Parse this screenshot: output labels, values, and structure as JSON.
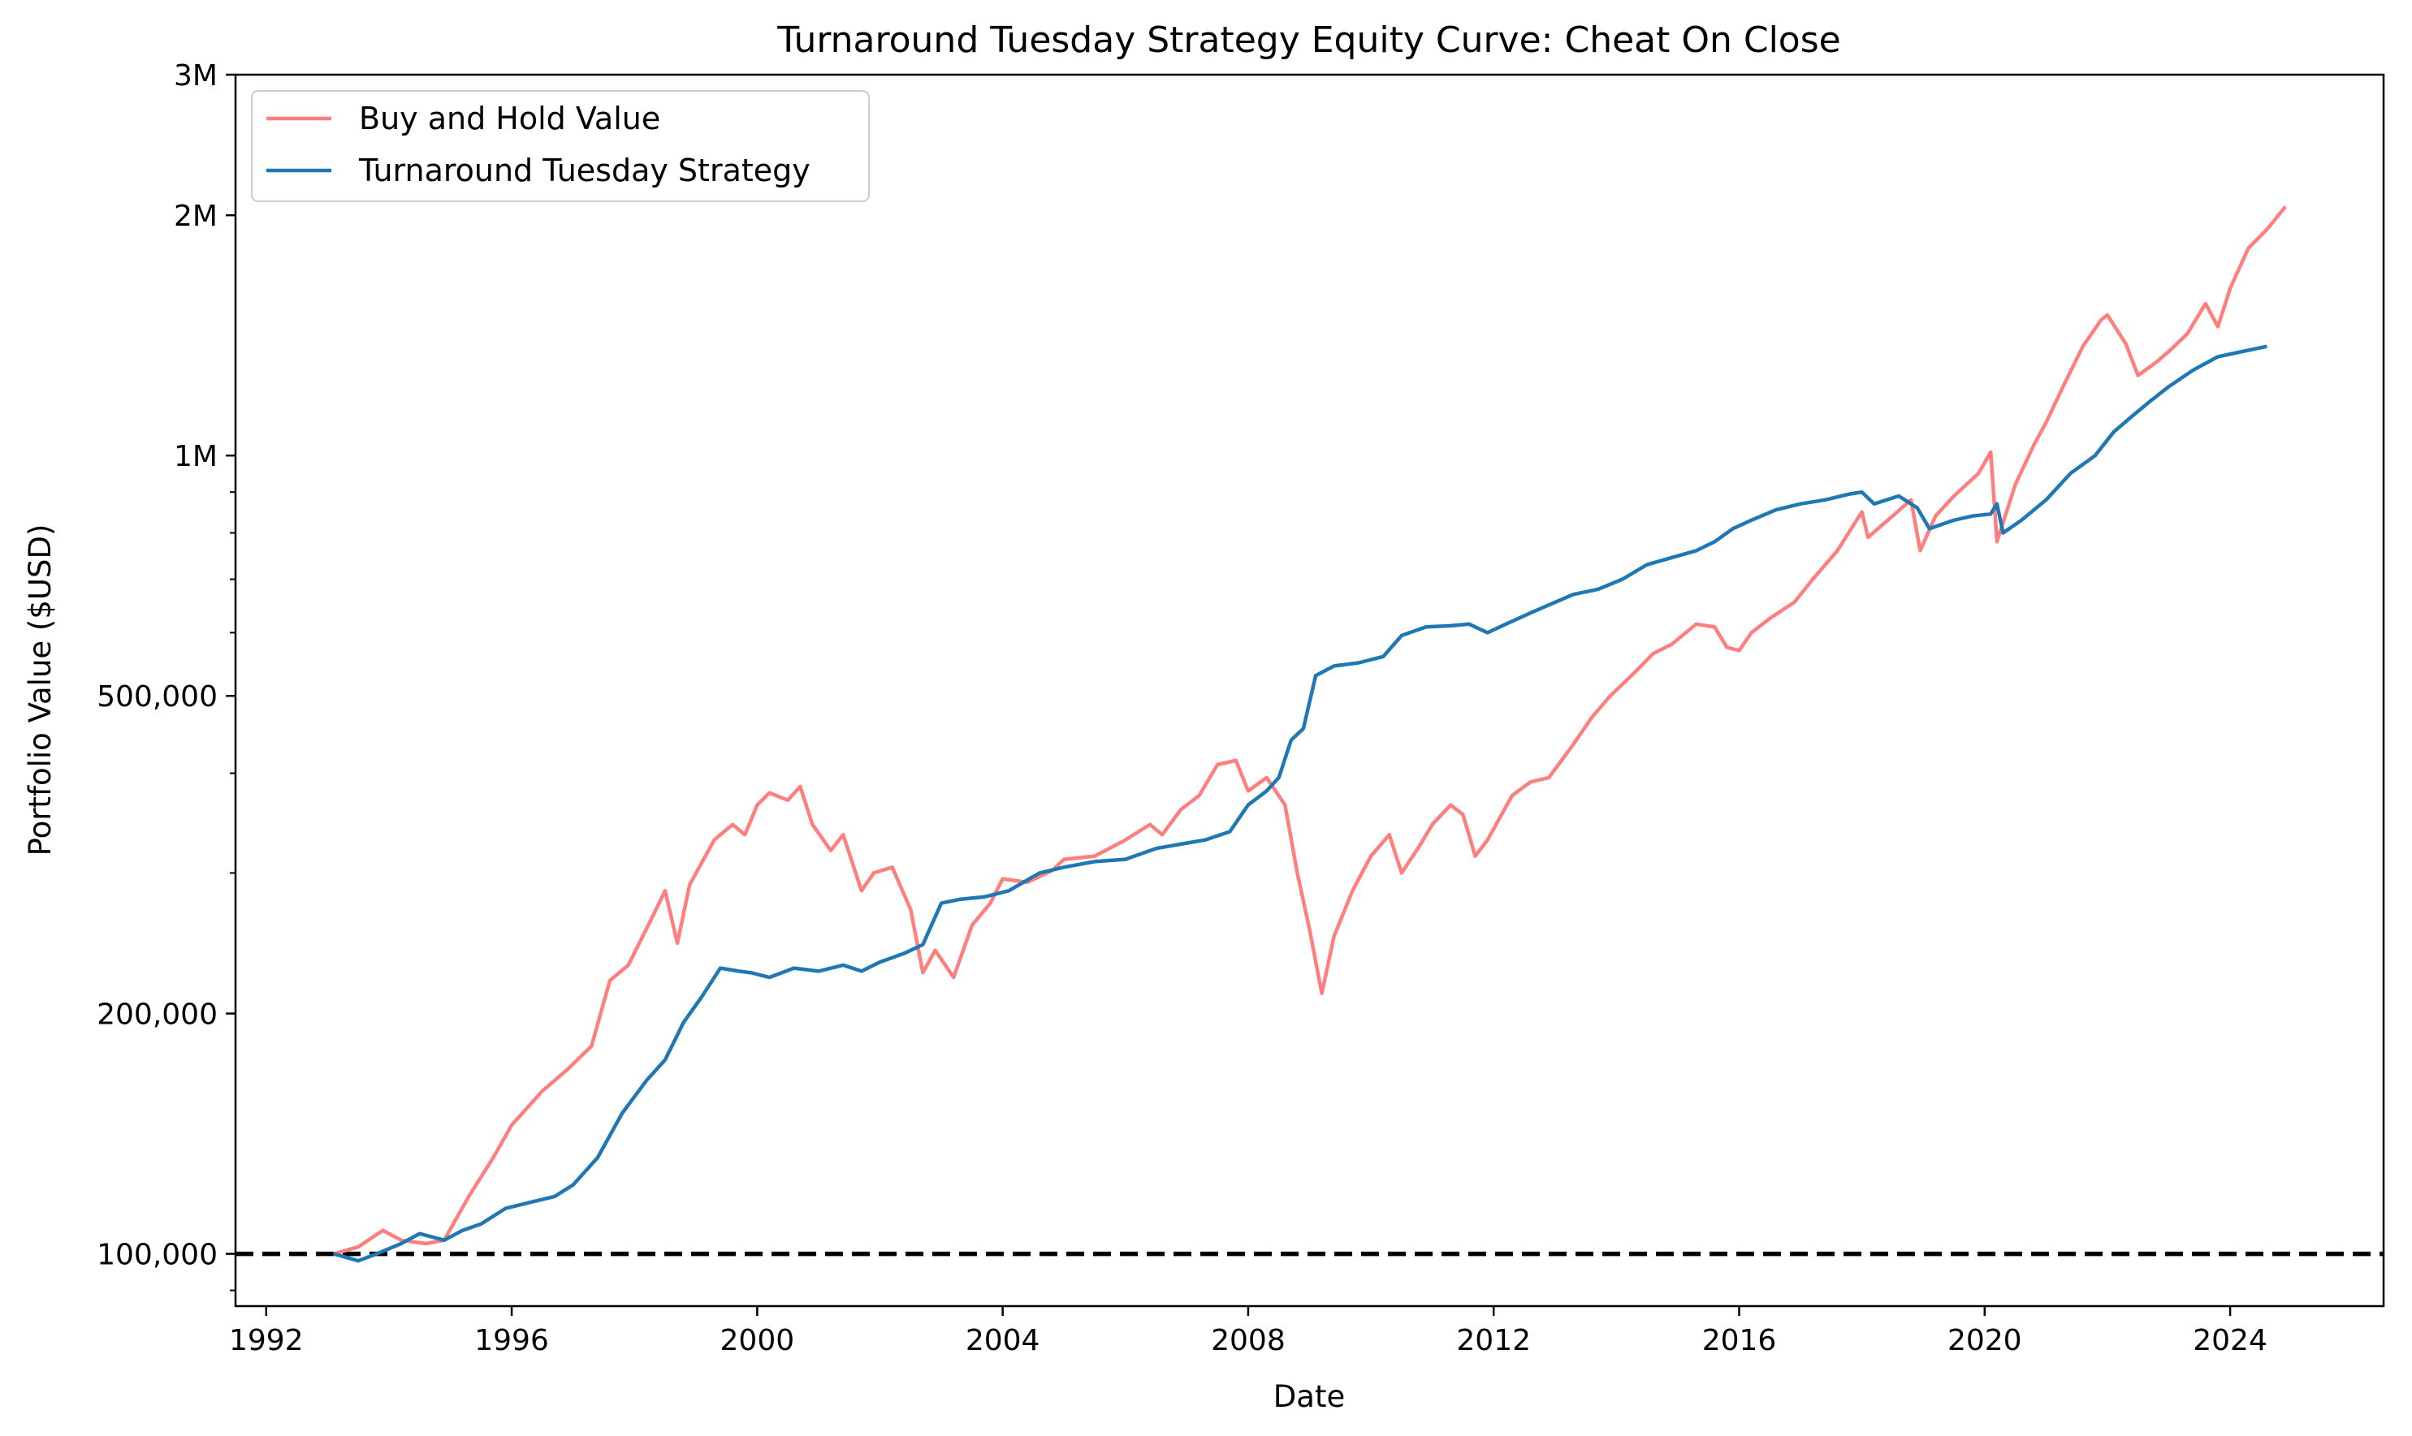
{
  "chart_data": {
    "type": "line",
    "title": "Turnaround Tuesday Strategy Equity Curve: Cheat On Close",
    "xlabel": "Date",
    "ylabel": "Portfolio Value ($USD)",
    "y_scale": "log",
    "xlim": [
      1991.5,
      2026.5
    ],
    "ylim": [
      86000,
      3000000
    ],
    "x_ticks": [
      {
        "value": 1992,
        "label": "1992"
      },
      {
        "value": 1996,
        "label": "1996"
      },
      {
        "value": 2000,
        "label": "2000"
      },
      {
        "value": 2004,
        "label": "2004"
      },
      {
        "value": 2008,
        "label": "2008"
      },
      {
        "value": 2012,
        "label": "2012"
      },
      {
        "value": 2016,
        "label": "2016"
      },
      {
        "value": 2020,
        "label": "2020"
      },
      {
        "value": 2024,
        "label": "2024"
      }
    ],
    "y_ticks": [
      {
        "value": 100000,
        "label": "100,000"
      },
      {
        "value": 200000,
        "label": "200,000"
      },
      {
        "value": 500000,
        "label": "500,000"
      },
      {
        "value": 1000000,
        "label": "1M"
      },
      {
        "value": 2000000,
        "label": "2M"
      },
      {
        "value": 3000000,
        "label": "3M"
      }
    ],
    "legend_position": "top-left",
    "grid": false,
    "reference_line": {
      "y": 100000,
      "style": "dashed",
      "color": "#000000"
    },
    "series": [
      {
        "name": "Buy and Hold Value",
        "color": "#ff7f7f",
        "points": [
          [
            1993.1,
            100000
          ],
          [
            1993.5,
            102000
          ],
          [
            1993.9,
            107000
          ],
          [
            1994.2,
            104000
          ],
          [
            1994.6,
            103000
          ],
          [
            1994.9,
            104000
          ],
          [
            1995.3,
            118000
          ],
          [
            1995.7,
            132000
          ],
          [
            1996.0,
            145000
          ],
          [
            1996.5,
            160000
          ],
          [
            1996.9,
            170000
          ],
          [
            1997.3,
            182000
          ],
          [
            1997.6,
            220000
          ],
          [
            1997.9,
            230000
          ],
          [
            1998.3,
            265000
          ],
          [
            1998.5,
            285000
          ],
          [
            1998.7,
            245000
          ],
          [
            1998.9,
            290000
          ],
          [
            1999.3,
            330000
          ],
          [
            1999.6,
            345000
          ],
          [
            1999.8,
            335000
          ],
          [
            2000.0,
            365000
          ],
          [
            2000.2,
            378000
          ],
          [
            2000.5,
            370000
          ],
          [
            2000.7,
            385000
          ],
          [
            2000.9,
            345000
          ],
          [
            2001.2,
            320000
          ],
          [
            2001.4,
            335000
          ],
          [
            2001.7,
            285000
          ],
          [
            2001.9,
            300000
          ],
          [
            2002.2,
            305000
          ],
          [
            2002.5,
            270000
          ],
          [
            2002.7,
            225000
          ],
          [
            2002.9,
            240000
          ],
          [
            2003.2,
            222000
          ],
          [
            2003.5,
            258000
          ],
          [
            2003.8,
            275000
          ],
          [
            2004.0,
            295000
          ],
          [
            2004.4,
            292000
          ],
          [
            2004.8,
            302000
          ],
          [
            2005.0,
            312000
          ],
          [
            2005.5,
            315000
          ],
          [
            2006.0,
            330000
          ],
          [
            2006.4,
            345000
          ],
          [
            2006.6,
            335000
          ],
          [
            2006.9,
            360000
          ],
          [
            2007.2,
            375000
          ],
          [
            2007.5,
            410000
          ],
          [
            2007.8,
            415000
          ],
          [
            2008.0,
            380000
          ],
          [
            2008.3,
            395000
          ],
          [
            2008.6,
            365000
          ],
          [
            2008.8,
            300000
          ],
          [
            2009.0,
            255000
          ],
          [
            2009.2,
            212000
          ],
          [
            2009.4,
            250000
          ],
          [
            2009.7,
            285000
          ],
          [
            2010.0,
            315000
          ],
          [
            2010.3,
            335000
          ],
          [
            2010.5,
            300000
          ],
          [
            2010.8,
            325000
          ],
          [
            2011.0,
            345000
          ],
          [
            2011.3,
            365000
          ],
          [
            2011.5,
            355000
          ],
          [
            2011.7,
            315000
          ],
          [
            2011.9,
            330000
          ],
          [
            2012.3,
            375000
          ],
          [
            2012.6,
            390000
          ],
          [
            2012.9,
            395000
          ],
          [
            2013.3,
            435000
          ],
          [
            2013.6,
            470000
          ],
          [
            2013.9,
            500000
          ],
          [
            2014.3,
            535000
          ],
          [
            2014.6,
            565000
          ],
          [
            2014.9,
            580000
          ],
          [
            2015.3,
            615000
          ],
          [
            2015.6,
            610000
          ],
          [
            2015.8,
            575000
          ],
          [
            2016.0,
            570000
          ],
          [
            2016.2,
            600000
          ],
          [
            2016.5,
            625000
          ],
          [
            2016.9,
            655000
          ],
          [
            2017.2,
            700000
          ],
          [
            2017.6,
            760000
          ],
          [
            2018.0,
            850000
          ],
          [
            2018.1,
            790000
          ],
          [
            2018.5,
            840000
          ],
          [
            2018.8,
            880000
          ],
          [
            2018.95,
            760000
          ],
          [
            2019.2,
            840000
          ],
          [
            2019.5,
            890000
          ],
          [
            2019.9,
            950000
          ],
          [
            2020.1,
            1010000
          ],
          [
            2020.2,
            780000
          ],
          [
            2020.5,
            920000
          ],
          [
            2020.8,
            1030000
          ],
          [
            2021.0,
            1100000
          ],
          [
            2021.3,
            1230000
          ],
          [
            2021.6,
            1370000
          ],
          [
            2021.9,
            1480000
          ],
          [
            2022.0,
            1500000
          ],
          [
            2022.3,
            1380000
          ],
          [
            2022.5,
            1260000
          ],
          [
            2022.8,
            1310000
          ],
          [
            2023.0,
            1350000
          ],
          [
            2023.3,
            1420000
          ],
          [
            2023.6,
            1550000
          ],
          [
            2023.8,
            1450000
          ],
          [
            2024.0,
            1620000
          ],
          [
            2024.3,
            1820000
          ],
          [
            2024.6,
            1920000
          ],
          [
            2024.9,
            2050000
          ]
        ]
      },
      {
        "name": "Turnaround Tuesday Strategy",
        "color": "#1f77b4",
        "points": [
          [
            1993.1,
            100000
          ],
          [
            1993.5,
            98000
          ],
          [
            1993.8,
            100000
          ],
          [
            1994.2,
            103000
          ],
          [
            1994.5,
            106000
          ],
          [
            1994.9,
            104000
          ],
          [
            1995.2,
            107000
          ],
          [
            1995.5,
            109000
          ],
          [
            1995.9,
            114000
          ],
          [
            1996.3,
            116000
          ],
          [
            1996.7,
            118000
          ],
          [
            1997.0,
            122000
          ],
          [
            1997.4,
            132000
          ],
          [
            1997.8,
            150000
          ],
          [
            1998.2,
            165000
          ],
          [
            1998.5,
            175000
          ],
          [
            1998.8,
            195000
          ],
          [
            1999.1,
            210000
          ],
          [
            1999.4,
            228000
          ],
          [
            1999.7,
            226000
          ],
          [
            1999.9,
            225000
          ],
          [
            2000.2,
            222000
          ],
          [
            2000.6,
            228000
          ],
          [
            2001.0,
            226000
          ],
          [
            2001.4,
            230000
          ],
          [
            2001.7,
            226000
          ],
          [
            2002.0,
            232000
          ],
          [
            2002.4,
            238000
          ],
          [
            2002.7,
            244000
          ],
          [
            2003.0,
            275000
          ],
          [
            2003.3,
            278000
          ],
          [
            2003.7,
            280000
          ],
          [
            2004.1,
            285000
          ],
          [
            2004.6,
            300000
          ],
          [
            2005.0,
            305000
          ],
          [
            2005.5,
            310000
          ],
          [
            2006.0,
            312000
          ],
          [
            2006.5,
            322000
          ],
          [
            2006.9,
            326000
          ],
          [
            2007.3,
            330000
          ],
          [
            2007.7,
            338000
          ],
          [
            2008.0,
            365000
          ],
          [
            2008.3,
            380000
          ],
          [
            2008.5,
            395000
          ],
          [
            2008.7,
            440000
          ],
          [
            2008.9,
            455000
          ],
          [
            2009.1,
            530000
          ],
          [
            2009.4,
            545000
          ],
          [
            2009.8,
            550000
          ],
          [
            2010.2,
            560000
          ],
          [
            2010.5,
            595000
          ],
          [
            2010.9,
            610000
          ],
          [
            2011.3,
            612000
          ],
          [
            2011.6,
            615000
          ],
          [
            2011.9,
            600000
          ],
          [
            2012.2,
            615000
          ],
          [
            2012.6,
            635000
          ],
          [
            2012.9,
            650000
          ],
          [
            2013.3,
            670000
          ],
          [
            2013.7,
            680000
          ],
          [
            2014.1,
            700000
          ],
          [
            2014.5,
            730000
          ],
          [
            2014.9,
            745000
          ],
          [
            2015.3,
            760000
          ],
          [
            2015.6,
            780000
          ],
          [
            2015.9,
            810000
          ],
          [
            2016.2,
            830000
          ],
          [
            2016.6,
            855000
          ],
          [
            2017.0,
            870000
          ],
          [
            2017.4,
            880000
          ],
          [
            2017.8,
            895000
          ],
          [
            2018.0,
            900000
          ],
          [
            2018.2,
            870000
          ],
          [
            2018.6,
            890000
          ],
          [
            2018.9,
            860000
          ],
          [
            2019.1,
            810000
          ],
          [
            2019.5,
            830000
          ],
          [
            2019.8,
            840000
          ],
          [
            2020.1,
            845000
          ],
          [
            2020.2,
            870000
          ],
          [
            2020.3,
            800000
          ],
          [
            2020.6,
            830000
          ],
          [
            2021.0,
            880000
          ],
          [
            2021.4,
            950000
          ],
          [
            2021.8,
            1000000
          ],
          [
            2022.1,
            1070000
          ],
          [
            2022.4,
            1120000
          ],
          [
            2022.7,
            1170000
          ],
          [
            2023.0,
            1220000
          ],
          [
            2023.4,
            1280000
          ],
          [
            2023.8,
            1330000
          ],
          [
            2024.2,
            1350000
          ],
          [
            2024.6,
            1370000
          ]
        ]
      }
    ]
  }
}
